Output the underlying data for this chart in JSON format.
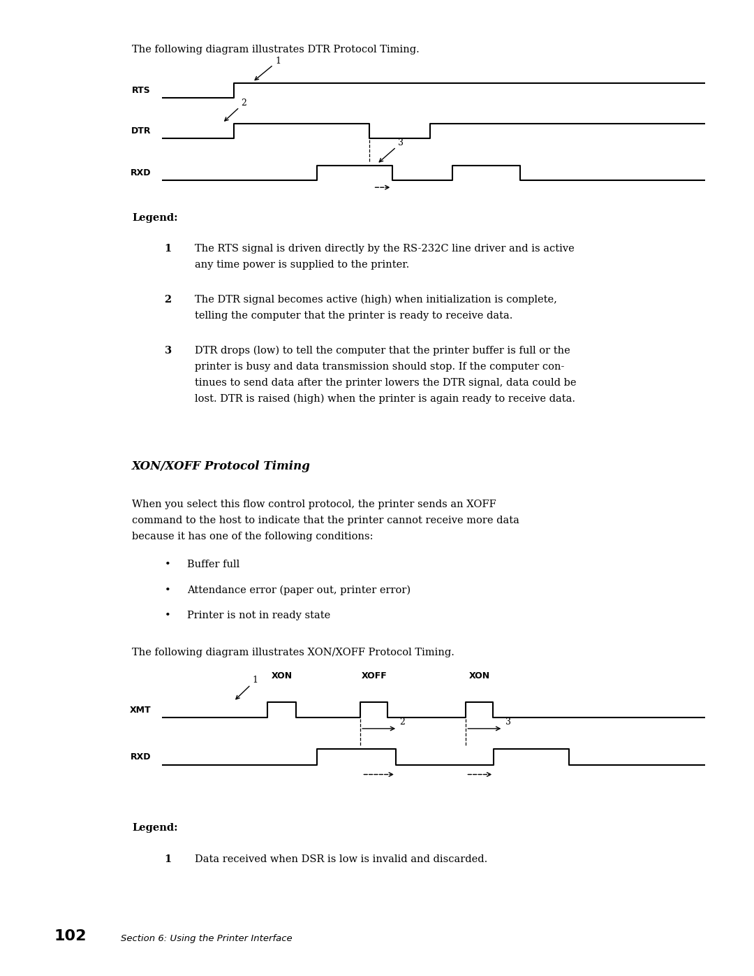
{
  "bg_color": "#ffffff",
  "text_color": "#000000",
  "page_width": 10.8,
  "page_height": 13.97,
  "dpi": 100,
  "top_text": "The following diagram illustrates DTR Protocol Timing.",
  "legend1_title": "Legend:",
  "legend1_items": [
    {
      "num": "1",
      "text": "The RTS signal is driven directly by the RS-232C line driver and is active\nany time power is supplied to the printer."
    },
    {
      "num": "2",
      "text": "The DTR signal becomes active (high) when initialization is complete,\ntelling the computer that the printer is ready to receive data."
    },
    {
      "num": "3",
      "text": "DTR drops (low) to tell the computer that the printer buffer is full or the\nprinter is busy and data transmission should stop. If the computer con-\ntinues to send data after the printer lowers the DTR signal, data could be\nlost. DTR is raised (high) when the printer is again ready to receive data."
    }
  ],
  "section_title": "XON/XOFF Protocol Timing",
  "section_para": "When you select this flow control protocol, the printer sends an XOFF\ncommand to the host to indicate that the printer cannot receive more data\nbecause it has one of the following conditions:",
  "bullets": [
    "Buffer full",
    "Attendance error (paper out, printer error)",
    "Printer is not in ready state"
  ],
  "bottom_text": "The following diagram illustrates XON/XOFF Protocol Timing.",
  "xon_labels": [
    "XON",
    "XOFF",
    "XON"
  ],
  "legend2_title": "Legend:",
  "legend2_items": [
    {
      "num": "1",
      "text": "Data received when DSR is low is invalid and discarded."
    }
  ],
  "footer_num": "102",
  "footer_text": "Section 6: Using the Printer Interface"
}
